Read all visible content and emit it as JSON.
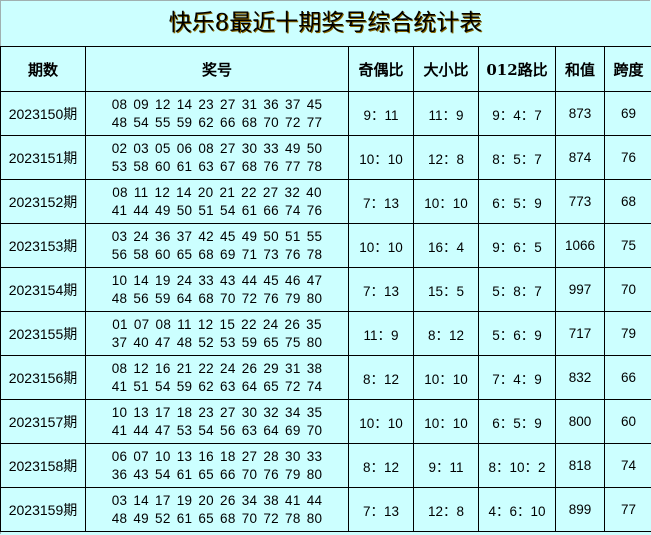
{
  "title": "快乐8最近十期奖号综合统计表",
  "headers": [
    "期数",
    "奖号",
    "奇偶比",
    "大小比",
    "012路比",
    "和值",
    "跨度"
  ],
  "rows": [
    {
      "period": "2023150期",
      "line1": "08 09 12 14 23 27 31 36 37 45",
      "line2": "48 54 55 59 62 66 68 70 72 77",
      "odd_even": "9：11",
      "big_small": "11：9",
      "route012": "9：4：7",
      "sum": "873",
      "span": "69"
    },
    {
      "period": "2023151期",
      "line1": "02 03 05 06 08 27 30 33 49 50",
      "line2": "53 58 60 61 63 67 68 76 77 78",
      "odd_even": "10：10",
      "big_small": "12：8",
      "route012": "8：5：7",
      "sum": "874",
      "span": "76"
    },
    {
      "period": "2023152期",
      "line1": "08 11 12 14 20 21 22 27 32 40",
      "line2": "41 44 49 50 51 54 61 66 74 76",
      "odd_even": "7：13",
      "big_small": "10：10",
      "route012": "6：5：9",
      "sum": "773",
      "span": "68"
    },
    {
      "period": "2023153期",
      "line1": "03 24 36 37 42 45 49 50 51 55",
      "line2": "56 58 60 65 68 69 71 73 76 78",
      "odd_even": "10：10",
      "big_small": "16：4",
      "route012": "9：6：5",
      "sum": "1066",
      "span": "75"
    },
    {
      "period": "2023154期",
      "line1": "10 14 19 24 33 43 44 45 46 47",
      "line2": "48 56 59 64 68 70 72 76 79 80",
      "odd_even": "7：13",
      "big_small": "15：5",
      "route012": "5：8：7",
      "sum": "997",
      "span": "70"
    },
    {
      "period": "2023155期",
      "line1": "01 07 08 11 12 15 22 24 26 35",
      "line2": "37 40 47 48 52 53 59 65 75 80",
      "odd_even": "11：9",
      "big_small": "8：12",
      "route012": "5：6：9",
      "sum": "717",
      "span": "79"
    },
    {
      "period": "2023156期",
      "line1": "08 12 16 21 22 24 26 29 31 38",
      "line2": "41 51 54 59 62 63 64 65 72 74",
      "odd_even": "8：12",
      "big_small": "10：10",
      "route012": "7：4：9",
      "sum": "832",
      "span": "66"
    },
    {
      "period": "2023157期",
      "line1": "10 13 17 18 23 27 30 32 34 35",
      "line2": "41 44 47 53 54 56 63 64 69 70",
      "odd_even": "10：10",
      "big_small": "10：10",
      "route012": "6：5：9",
      "sum": "800",
      "span": "60"
    },
    {
      "period": "2023158期",
      "line1": "06 07 10 13 16 18 27 28 30 33",
      "line2": "36 43 54 61 65 66 70 76 79 80",
      "odd_even": "8：12",
      "big_small": "9：11",
      "route012": "8：10：2",
      "sum": "818",
      "span": "74"
    },
    {
      "period": "2023159期",
      "line1": "03 14 17 19 20 26 34 38 41 44",
      "line2": "48 49 52 61 65 68 70 72 78 80",
      "odd_even": "7：13",
      "big_small": "12：8",
      "route012": "4：6：10",
      "sum": "899",
      "span": "77"
    }
  ],
  "colors": {
    "background": "#ccffff",
    "border": "#000000"
  }
}
